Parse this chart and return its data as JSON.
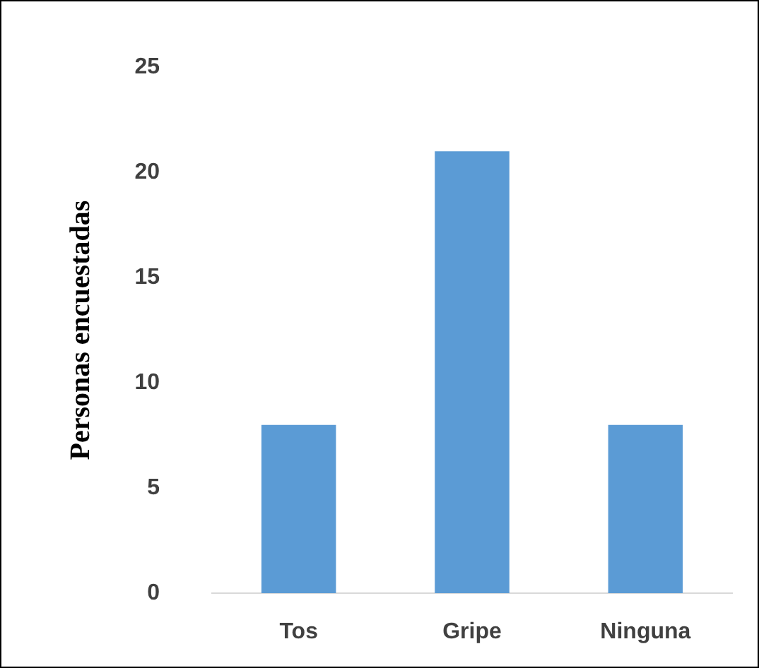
{
  "chart_data": {
    "type": "bar",
    "ylabel": "Personas encuestadas",
    "categories": [
      "Tos",
      "Gripe",
      "Ninguna"
    ],
    "values": [
      8,
      21,
      8
    ],
    "color": "#5b9bd5",
    "ylim": [
      0,
      25
    ],
    "yticks": [
      0,
      5,
      10,
      15,
      20,
      25
    ],
    "grid": false,
    "legend": false
  }
}
